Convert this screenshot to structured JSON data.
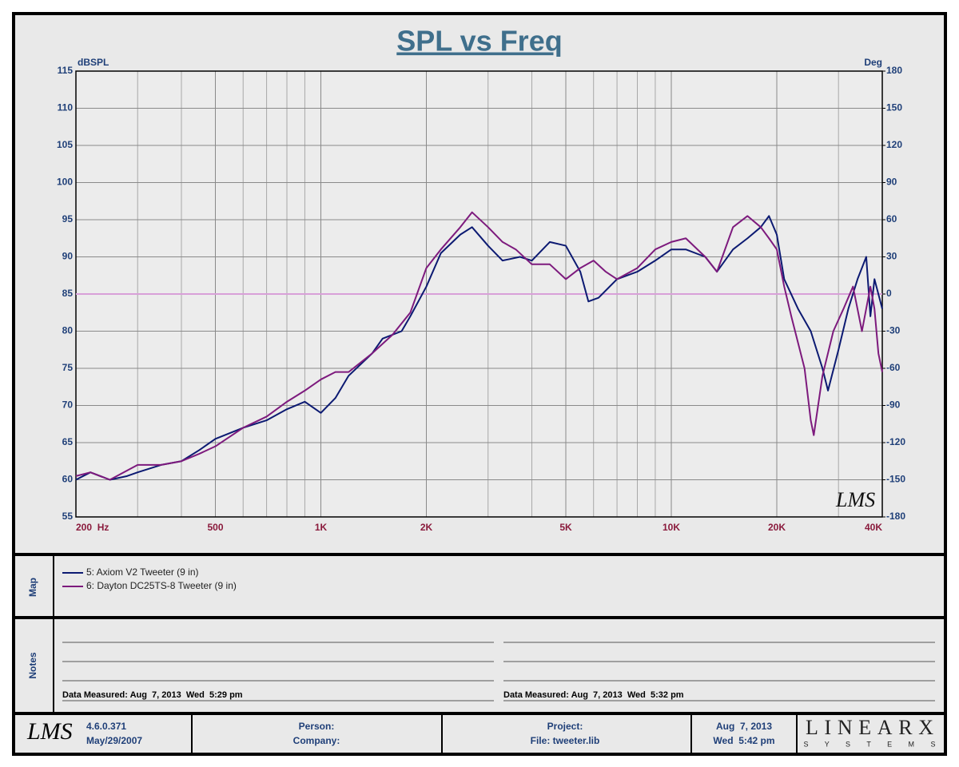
{
  "chart_data": {
    "type": "line",
    "title": "SPL vs Freq",
    "y_label": "dBSPL",
    "y2_label": "Deg",
    "xlim": [
      200,
      40000
    ],
    "log_x": true,
    "xticks": [
      {
        "value": 200,
        "label": "200  Hz"
      },
      500,
      {
        "value": 1000,
        "label": "1K"
      },
      {
        "value": 2000,
        "label": "2K"
      },
      {
        "value": 5000,
        "label": "5K"
      },
      {
        "value": 10000,
        "label": "10K"
      },
      {
        "value": 20000,
        "label": "20K"
      },
      {
        "value": 40000,
        "label": "40K"
      }
    ],
    "ylim": [
      55,
      115
    ],
    "yticks": [
      55,
      60,
      65,
      70,
      75,
      80,
      85,
      90,
      95,
      100,
      105,
      110,
      115
    ],
    "y2lim": [
      -180,
      180
    ],
    "y2ticks": [
      -180,
      -150,
      -120,
      -90,
      -60,
      -30,
      0,
      30,
      60,
      90,
      120,
      150,
      180
    ],
    "y2_reference": 0,
    "reference_color": "#d8a0d8",
    "grid": true,
    "watermark": "LMS",
    "series": [
      {
        "name": "5: Axiom V2 Tweeter (9 in)",
        "color": "#0c1a72",
        "x": [
          200,
          220,
          250,
          280,
          300,
          350,
          400,
          450,
          500,
          600,
          700,
          800,
          900,
          1000,
          1100,
          1200,
          1400,
          1500,
          1700,
          1800,
          2000,
          2200,
          2500,
          2700,
          3000,
          3300,
          3700,
          4000,
          4500,
          5000,
          5500,
          5800,
          6200,
          7000,
          8000,
          9000,
          10000,
          11000,
          12500,
          13500,
          15000,
          16500,
          18000,
          19000,
          20000,
          21000,
          23000,
          25000,
          27000,
          28000,
          30000,
          32000,
          34000,
          36000,
          37000,
          38000,
          40000
        ],
        "values": [
          60,
          61,
          60,
          60.5,
          61,
          62,
          62.5,
          64,
          65.5,
          67,
          68,
          69.5,
          70.5,
          69,
          71,
          74,
          77,
          79,
          80,
          82,
          86,
          90.5,
          93,
          94,
          91.5,
          89.5,
          90,
          89.5,
          92,
          91.5,
          88,
          84,
          84.5,
          87,
          88,
          89.5,
          91,
          91,
          90,
          88,
          91,
          92.5,
          94,
          95.5,
          93,
          87,
          83,
          80,
          75,
          72,
          77.5,
          83,
          87,
          90,
          82,
          87,
          83
        ]
      },
      {
        "name": "6: Dayton DC25TS-8 Tweeter (9 in)",
        "color": "#7d1a7d",
        "x": [
          200,
          220,
          250,
          300,
          350,
          400,
          450,
          500,
          600,
          700,
          800,
          900,
          1000,
          1100,
          1200,
          1400,
          1600,
          1800,
          2000,
          2200,
          2500,
          2700,
          3000,
          3300,
          3600,
          4000,
          4500,
          5000,
          5500,
          6000,
          6500,
          7000,
          8000,
          9000,
          10000,
          11000,
          12500,
          13500,
          15000,
          16500,
          18000,
          19000,
          20000,
          21000,
          22000,
          24000,
          25000,
          25500,
          27000,
          29000,
          31000,
          33000,
          35000,
          37000,
          38000,
          39000,
          40000
        ],
        "values": [
          60.5,
          61,
          60,
          62,
          62,
          62.5,
          63.5,
          64.5,
          67,
          68.5,
          70.5,
          72,
          73.5,
          74.5,
          74.5,
          77,
          79.5,
          82.5,
          88.5,
          91,
          94,
          96,
          94,
          92,
          91,
          89,
          89,
          87,
          88.5,
          89.5,
          88,
          87,
          88.5,
          91,
          92,
          92.5,
          90,
          88,
          94,
          95.5,
          94,
          92.5,
          91,
          86,
          82,
          75,
          68,
          66,
          74,
          80,
          83,
          86,
          80,
          86,
          83,
          77,
          74.5
        ]
      }
    ]
  },
  "map": {
    "label": "Map"
  },
  "notes": {
    "label": "Notes",
    "entries": [
      "Data Measured: Aug  7, 2013  Wed  5:29 pm",
      "Data Measured: Aug  7, 2013  Wed  5:32 pm"
    ]
  },
  "footer": {
    "logo": "LMS",
    "version": "4.6.0.371",
    "version_date": "May/29/2007",
    "person": "Person:",
    "company": "Company:",
    "project": "Project:",
    "file": "File: tweeter.lib",
    "date": "Aug  7, 2013",
    "time": "Wed  5:42 pm",
    "brand": "LINEARX",
    "brand_sub": "S  Y  S  T  E  M  S"
  }
}
